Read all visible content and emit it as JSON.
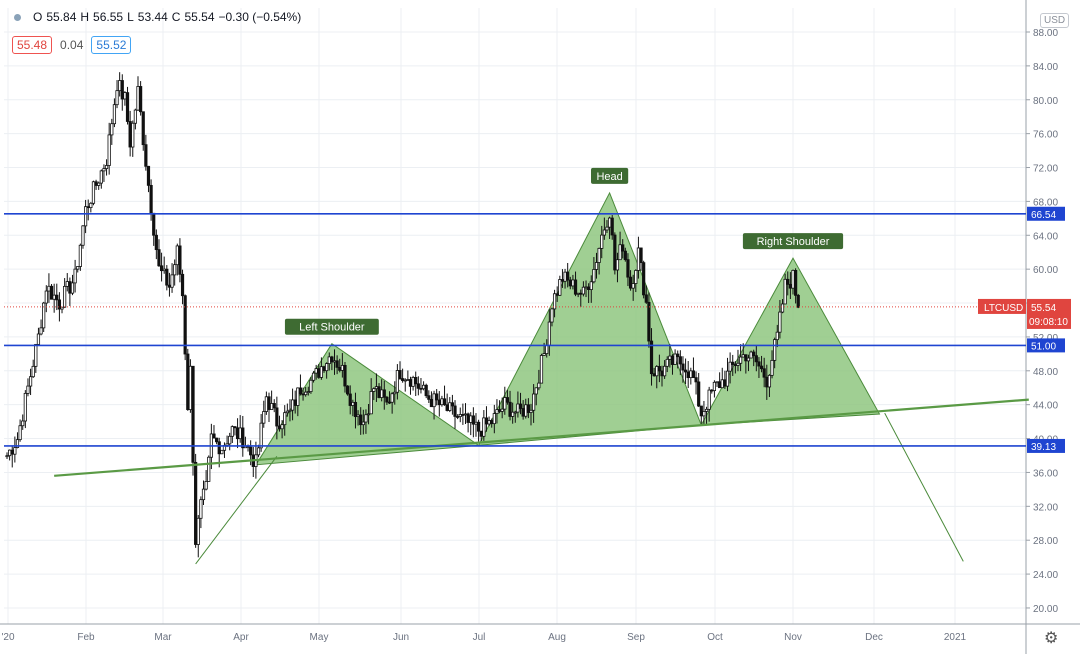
{
  "legend": {
    "open_key": "O",
    "open": "55.84",
    "high_key": "H",
    "high": "56.55",
    "low_key": "L",
    "low": "53.44",
    "close_key": "C",
    "close": "55.54",
    "change": "−0.30 (−0.54%)"
  },
  "indicator": {
    "left": "55.48",
    "mid": "0.04",
    "right": "55.52"
  },
  "currency_tag": "USD",
  "settings_icon": "gear-icon",
  "colors": {
    "pattern_fill": "#8bc57b",
    "pattern_stroke": "#4a8a3a",
    "trendline": "#5a9a45",
    "level_line": "#1f45d1",
    "label_bg": "#3e6b32",
    "price_label_bg": "#e0453f",
    "candle": "#111111"
  },
  "chart_data": {
    "type": "candlestick",
    "symbol": "LTCUSD",
    "last_price": "55.54",
    "countdown": "09:08:10",
    "ylim": [
      18,
      90
    ],
    "y_ticks": [
      "20.00",
      "24.00",
      "28.00",
      "32.00",
      "36.00",
      "40.00",
      "44.00",
      "48.00",
      "52.00",
      "56.00",
      "60.00",
      "64.00",
      "68.00",
      "72.00",
      "76.00",
      "80.00",
      "84.00",
      "88.00"
    ],
    "x_ticks": [
      "'20",
      "Feb",
      "Mar",
      "Apr",
      "May",
      "Jun",
      "Jul",
      "Aug",
      "Sep",
      "Oct",
      "Nov",
      "Dec",
      "2021"
    ],
    "levels": [
      {
        "label": "66.54",
        "value": 66.54
      },
      {
        "label": "51.00",
        "value": 51.0
      },
      {
        "label": "39.13",
        "value": 39.13
      }
    ],
    "annotations": [
      {
        "text": "Left Shoulder",
        "day": 124,
        "value": 51.2
      },
      {
        "text": "Head",
        "day": 230,
        "value": 69.0
      },
      {
        "text": "Right Shoulder",
        "day": 300,
        "value": 61.3
      }
    ],
    "neckline": {
      "from": {
        "day": 18,
        "value": 35.6
      },
      "to": {
        "day": 390,
        "value": 44.6
      }
    },
    "projection": [
      {
        "day": 72,
        "value": 25.2
      },
      {
        "day": 103,
        "value": 37.9
      }
    ],
    "target_line": [
      {
        "day": 335,
        "value": 43.0
      },
      {
        "day": 365,
        "value": 25.5
      }
    ],
    "pattern_triangles": [
      [
        {
          "day": 95,
          "value": 36.9
        },
        {
          "day": 124,
          "value": 51.2
        },
        {
          "day": 180,
          "value": 39.2
        }
      ],
      [
        {
          "day": 180,
          "value": 39.2
        },
        {
          "day": 230,
          "value": 69.0
        },
        {
          "day": 265,
          "value": 41.6
        }
      ],
      [
        {
          "day": 265,
          "value": 41.6
        },
        {
          "day": 300,
          "value": 61.3
        },
        {
          "day": 333,
          "value": 42.9
        }
      ]
    ],
    "waypoints": [
      [
        0,
        38
      ],
      [
        4,
        40
      ],
      [
        8,
        46
      ],
      [
        12,
        52
      ],
      [
        15,
        58
      ],
      [
        20,
        56
      ],
      [
        26,
        59
      ],
      [
        30,
        67
      ],
      [
        34,
        70
      ],
      [
        38,
        73
      ],
      [
        42,
        82
      ],
      [
        45,
        80
      ],
      [
        47,
        75
      ],
      [
        50,
        81
      ],
      [
        54,
        70
      ],
      [
        58,
        60
      ],
      [
        62,
        58
      ],
      [
        65,
        62
      ],
      [
        67,
        57
      ],
      [
        69,
        44
      ],
      [
        70,
        48
      ],
      [
        72,
        28
      ],
      [
        74,
        32
      ],
      [
        76,
        34
      ],
      [
        78,
        40
      ],
      [
        82,
        39
      ],
      [
        86,
        41
      ],
      [
        90,
        40
      ],
      [
        95,
        37
      ],
      [
        99,
        45
      ],
      [
        103,
        42
      ],
      [
        108,
        43
      ],
      [
        112,
        46
      ],
      [
        117,
        47
      ],
      [
        121,
        49
      ],
      [
        124,
        50
      ],
      [
        128,
        48
      ],
      [
        132,
        44
      ],
      [
        136,
        42
      ],
      [
        140,
        46
      ],
      [
        145,
        44
      ],
      [
        150,
        48
      ],
      [
        155,
        47
      ],
      [
        160,
        45
      ],
      [
        165,
        44
      ],
      [
        170,
        43
      ],
      [
        175,
        42
      ],
      [
        180,
        41
      ],
      [
        185,
        42
      ],
      [
        190,
        44
      ],
      [
        195,
        43
      ],
      [
        200,
        44
      ],
      [
        205,
        50
      ],
      [
        208,
        56
      ],
      [
        212,
        59
      ],
      [
        216,
        58
      ],
      [
        220,
        57
      ],
      [
        224,
        60
      ],
      [
        227,
        64
      ],
      [
        230,
        67
      ],
      [
        232,
        60
      ],
      [
        235,
        63
      ],
      [
        238,
        58
      ],
      [
        241,
        62
      ],
      [
        244,
        56
      ],
      [
        246,
        48
      ],
      [
        250,
        48
      ],
      [
        254,
        49
      ],
      [
        258,
        49
      ],
      [
        262,
        47
      ],
      [
        265,
        43
      ],
      [
        270,
        46
      ],
      [
        274,
        47
      ],
      [
        278,
        49
      ],
      [
        282,
        50
      ],
      [
        286,
        49
      ],
      [
        290,
        47
      ],
      [
        294,
        52
      ],
      [
        297,
        58
      ],
      [
        300,
        59
      ],
      [
        302,
        55.5
      ]
    ]
  }
}
